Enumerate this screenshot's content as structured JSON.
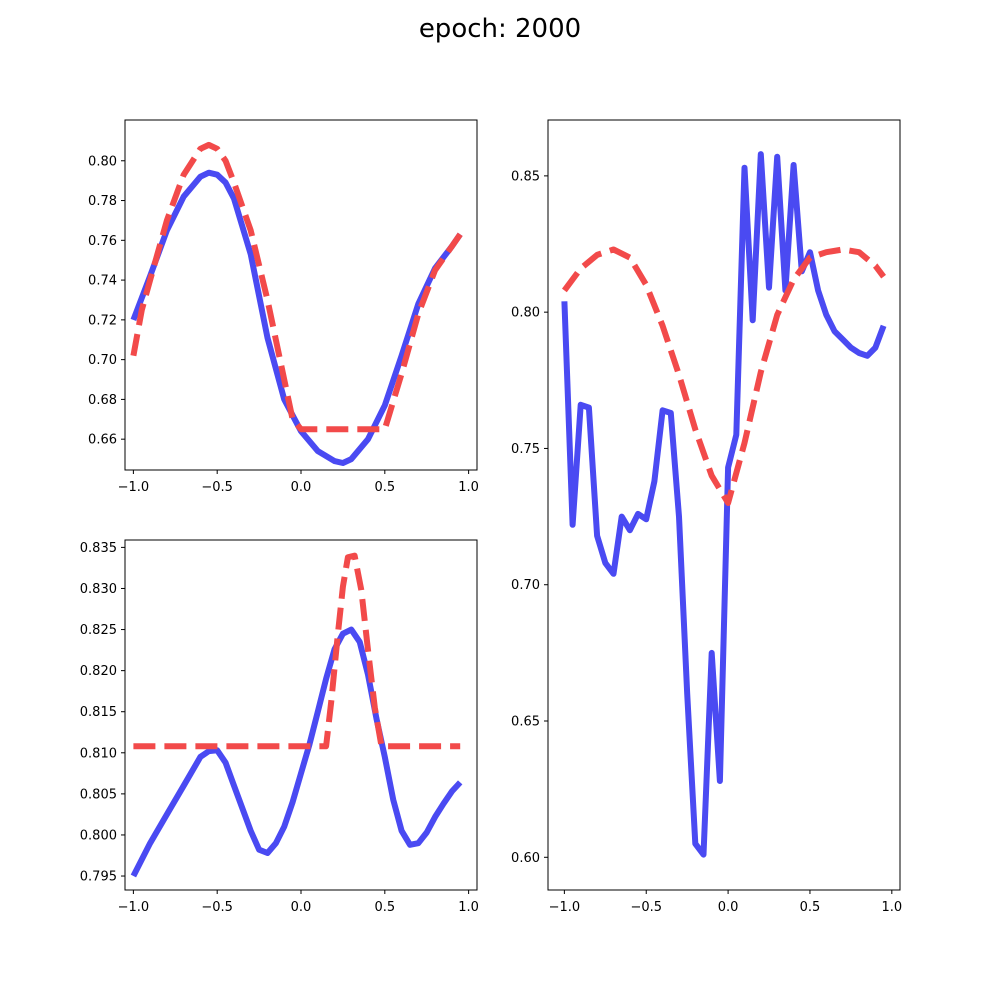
{
  "figure": {
    "title": "epoch: 2000"
  },
  "colors": {
    "predicted": "#4a4af2",
    "target": "#f24a4a"
  },
  "chart_data": [
    {
      "type": "line",
      "position": "top-left",
      "xlim": [
        -1.05,
        1.05
      ],
      "ylim": [
        0.6445,
        0.8205
      ],
      "xticks": [
        -1.0,
        -0.5,
        0.0,
        0.5,
        1.0
      ],
      "xtick_labels": [
        "−1.0",
        "−0.5",
        "0.0",
        "0.5",
        "1.0"
      ],
      "yticks": [
        0.66,
        0.68,
        0.7,
        0.72,
        0.74,
        0.76,
        0.78,
        0.8
      ],
      "ytick_labels": [
        "0.66",
        "0.68",
        "0.70",
        "0.72",
        "0.74",
        "0.76",
        "0.78",
        "0.80"
      ],
      "grid": false,
      "series": [
        {
          "role": "predicted",
          "style": "solid",
          "x": [
            -1.0,
            -0.9,
            -0.8,
            -0.7,
            -0.6,
            -0.55,
            -0.5,
            -0.45,
            -0.4,
            -0.3,
            -0.2,
            -0.1,
            0.0,
            0.1,
            0.2,
            0.25,
            0.3,
            0.4,
            0.5,
            0.6,
            0.7,
            0.8,
            0.9,
            0.95
          ],
          "y": [
            0.72,
            0.742,
            0.765,
            0.782,
            0.792,
            0.794,
            0.793,
            0.789,
            0.781,
            0.753,
            0.711,
            0.68,
            0.664,
            0.654,
            0.649,
            0.648,
            0.65,
            0.66,
            0.677,
            0.702,
            0.728,
            0.746,
            0.757,
            0.763
          ]
        },
        {
          "role": "target",
          "style": "dashed",
          "x": [
            -1.0,
            -0.95,
            -0.9,
            -0.8,
            -0.7,
            -0.6,
            -0.55,
            -0.5,
            -0.45,
            -0.4,
            -0.3,
            -0.2,
            -0.1,
            -0.05,
            0.0,
            0.1,
            0.2,
            0.3,
            0.4,
            0.5,
            0.6,
            0.7,
            0.8,
            0.9,
            0.95
          ],
          "y": [
            0.702,
            0.725,
            0.74,
            0.77,
            0.793,
            0.806,
            0.808,
            0.806,
            0.8,
            0.789,
            0.765,
            0.73,
            0.69,
            0.67,
            0.665,
            0.665,
            0.665,
            0.665,
            0.665,
            0.665,
            0.693,
            0.723,
            0.745,
            0.757,
            0.763
          ]
        }
      ]
    },
    {
      "type": "line",
      "position": "bottom-left",
      "xlim": [
        -1.05,
        1.05
      ],
      "ylim": [
        0.7933,
        0.8359
      ],
      "xticks": [
        -1.0,
        -0.5,
        0.0,
        0.5,
        1.0
      ],
      "xtick_labels": [
        "−1.0",
        "−0.5",
        "0.0",
        "0.5",
        "1.0"
      ],
      "yticks": [
        0.795,
        0.8,
        0.805,
        0.81,
        0.815,
        0.82,
        0.825,
        0.83,
        0.835
      ],
      "ytick_labels": [
        "0.795",
        "0.800",
        "0.805",
        "0.810",
        "0.815",
        "0.820",
        "0.825",
        "0.830",
        "0.835"
      ],
      "grid": false,
      "series": [
        {
          "role": "predicted",
          "style": "solid",
          "x": [
            -1.0,
            -0.9,
            -0.8,
            -0.7,
            -0.6,
            -0.55,
            -0.5,
            -0.45,
            -0.4,
            -0.3,
            -0.25,
            -0.2,
            -0.15,
            -0.1,
            -0.05,
            0.0,
            0.05,
            0.1,
            0.15,
            0.2,
            0.25,
            0.3,
            0.35,
            0.4,
            0.45,
            0.5,
            0.55,
            0.6,
            0.65,
            0.7,
            0.75,
            0.8,
            0.85,
            0.9,
            0.95
          ],
          "y": [
            0.795,
            0.799,
            0.8025,
            0.806,
            0.8095,
            0.8102,
            0.8103,
            0.8088,
            0.806,
            0.8005,
            0.7982,
            0.7978,
            0.799,
            0.801,
            0.804,
            0.8075,
            0.811,
            0.815,
            0.819,
            0.8226,
            0.8245,
            0.825,
            0.8235,
            0.8195,
            0.8142,
            0.8095,
            0.8043,
            0.8005,
            0.7988,
            0.799,
            0.8003,
            0.8022,
            0.8038,
            0.8053,
            0.8064
          ]
        },
        {
          "role": "target",
          "style": "dashed",
          "x": [
            -1.0,
            -0.5,
            0.0,
            0.15,
            0.18,
            0.22,
            0.25,
            0.28,
            0.32,
            0.36,
            0.4,
            0.44,
            0.48,
            0.52,
            0.56,
            0.95
          ],
          "y": [
            0.8108,
            0.8108,
            0.8108,
            0.8108,
            0.8162,
            0.8245,
            0.8302,
            0.8338,
            0.834,
            0.8298,
            0.8225,
            0.8155,
            0.8108,
            0.8108,
            0.8108,
            0.8108
          ]
        }
      ]
    },
    {
      "type": "line",
      "position": "right",
      "xlim": [
        -1.1,
        1.05
      ],
      "ylim": [
        0.588,
        0.8705
      ],
      "xticks": [
        -1.0,
        -0.5,
        0.0,
        0.5,
        1.0
      ],
      "xtick_labels": [
        "−1.0",
        "−0.5",
        "0.0",
        "0.5",
        "1.0"
      ],
      "yticks": [
        0.6,
        0.65,
        0.7,
        0.75,
        0.8,
        0.85
      ],
      "ytick_labels": [
        "0.60",
        "0.65",
        "0.70",
        "0.75",
        "0.80",
        "0.85"
      ],
      "grid": false,
      "series": [
        {
          "role": "predicted",
          "style": "solid",
          "x": [
            -1.0,
            -0.95,
            -0.9,
            -0.85,
            -0.8,
            -0.75,
            -0.7,
            -0.65,
            -0.6,
            -0.55,
            -0.5,
            -0.45,
            -0.4,
            -0.35,
            -0.3,
            -0.25,
            -0.2,
            -0.15,
            -0.1,
            -0.05,
            0.0,
            0.05,
            0.1,
            0.15,
            0.2,
            0.25,
            0.3,
            0.35,
            0.4,
            0.45,
            0.5,
            0.55,
            0.6,
            0.65,
            0.7,
            0.75,
            0.8,
            0.85,
            0.9,
            0.95
          ],
          "y": [
            0.804,
            0.722,
            0.766,
            0.765,
            0.718,
            0.708,
            0.704,
            0.725,
            0.72,
            0.726,
            0.724,
            0.738,
            0.764,
            0.763,
            0.725,
            0.66,
            0.605,
            0.601,
            0.675,
            0.628,
            0.743,
            0.755,
            0.853,
            0.797,
            0.858,
            0.809,
            0.857,
            0.808,
            0.854,
            0.815,
            0.822,
            0.808,
            0.799,
            0.793,
            0.79,
            0.787,
            0.785,
            0.784,
            0.787,
            0.795
          ]
        },
        {
          "role": "target",
          "style": "dashed",
          "x": [
            -1.0,
            -0.9,
            -0.8,
            -0.7,
            -0.6,
            -0.5,
            -0.4,
            -0.3,
            -0.2,
            -0.1,
            0.0,
            0.1,
            0.2,
            0.3,
            0.4,
            0.5,
            0.6,
            0.7,
            0.8,
            0.9,
            0.95
          ],
          "y": [
            0.808,
            0.816,
            0.821,
            0.823,
            0.82,
            0.81,
            0.795,
            0.777,
            0.757,
            0.74,
            0.73,
            0.752,
            0.778,
            0.799,
            0.812,
            0.82,
            0.822,
            0.823,
            0.822,
            0.817,
            0.813
          ]
        }
      ]
    }
  ]
}
